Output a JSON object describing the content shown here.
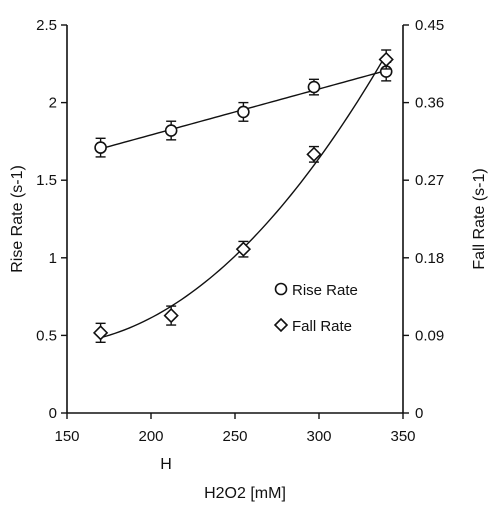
{
  "chart_data": {
    "type": "scatter",
    "title": "",
    "x": [
      170,
      212,
      255,
      297,
      340
    ],
    "xlim": [
      150,
      350
    ],
    "xticks": [
      "150",
      "200",
      "250",
      "300",
      "350"
    ],
    "xlabel": "H2O2 [mM]",
    "x_caption": "H",
    "y_left": {
      "label": "Rise Rate (s-1)",
      "lim": [
        0,
        2.5
      ],
      "ticks": [
        "0",
        "0.5",
        "1",
        "1.5",
        "2",
        "2.5"
      ]
    },
    "y_right": {
      "label": "Fall Rate (s-1)",
      "lim": [
        0,
        0.45
      ],
      "ticks": [
        "0",
        "0.09",
        "0.18",
        "0.27",
        "0.36",
        "0.45"
      ]
    },
    "series": [
      {
        "name": "Rise Rate",
        "axis": "left",
        "marker": "circle",
        "fit": "linear",
        "values": [
          1.71,
          1.82,
          1.94,
          2.1,
          2.2
        ],
        "errors": [
          0.06,
          0.06,
          0.06,
          0.05,
          0.06
        ]
      },
      {
        "name": "Fall Rate",
        "axis": "right",
        "marker": "diamond",
        "fit": "quadratic",
        "values": [
          0.093,
          0.113,
          0.19,
          0.3,
          0.41
        ],
        "errors": [
          0.011,
          0.011,
          0.009,
          0.009,
          0.011
        ]
      }
    ],
    "legend_position": "center-right",
    "grid": false,
    "color": "#111111"
  }
}
